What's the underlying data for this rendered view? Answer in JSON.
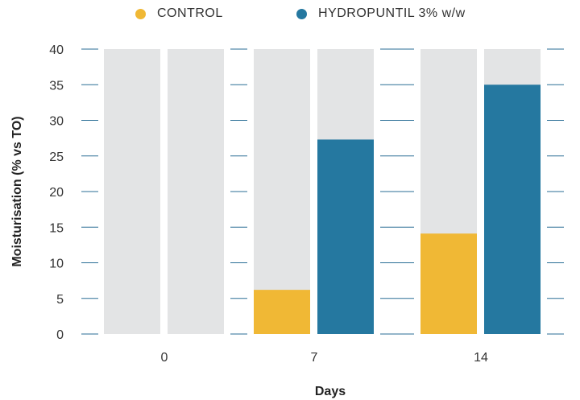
{
  "chart_data": {
    "type": "bar",
    "categories": [
      "0",
      "7",
      "14"
    ],
    "series": [
      {
        "name": "CONTROL",
        "color": "#f0b835",
        "values": [
          0,
          6.2,
          14.1
        ]
      },
      {
        "name": "HYDROPUNTIL 3% w/w",
        "color": "#2578a0",
        "values": [
          0,
          27.3,
          35.0
        ]
      }
    ],
    "xlabel": "Days",
    "ylabel": "Moisturisation (% vs TO)",
    "ylim": [
      0,
      40
    ],
    "yticks": [
      0,
      5,
      10,
      15,
      20,
      25,
      30,
      35,
      40
    ],
    "legend_position": "top",
    "background_bar_color": "#e3e4e5",
    "gridline_color": "#2a6e96"
  }
}
